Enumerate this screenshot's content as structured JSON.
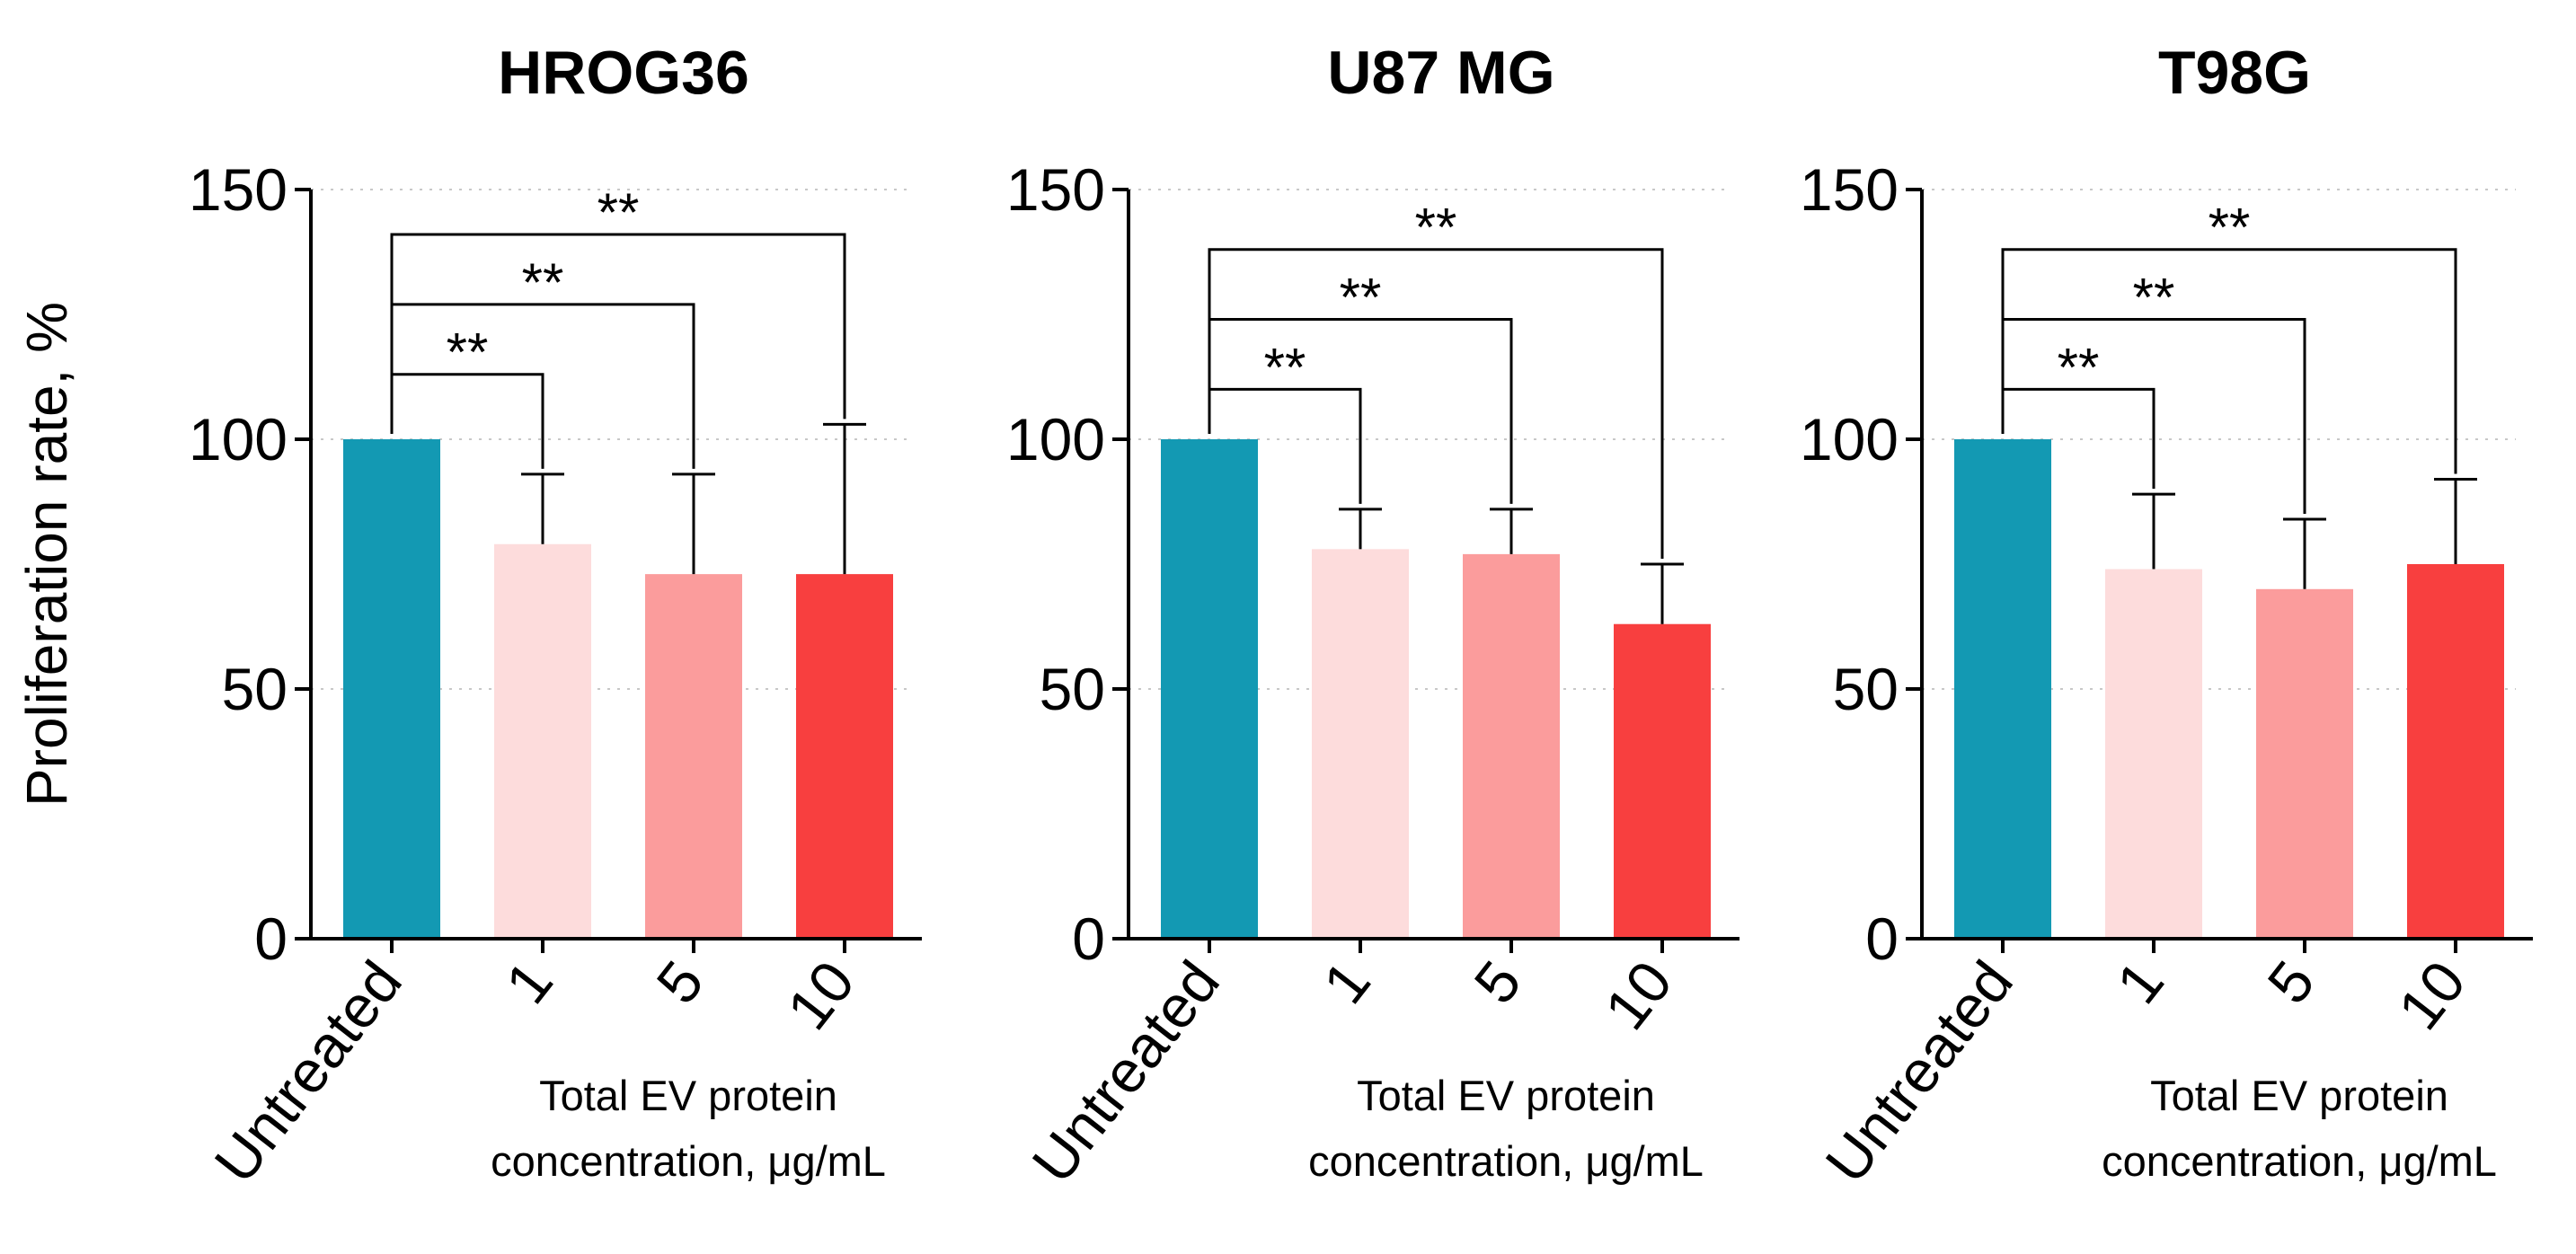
{
  "y_axis_label": "Proliferation rate, %",
  "colors": {
    "Untreated": "#1399b3",
    "1": "#fddcdc",
    "5": "#fb9c9c",
    "10": "#f83f3f"
  },
  "chart_data": [
    {
      "type": "bar",
      "title": "HROG36",
      "categories": [
        "Untreated",
        "1",
        "5",
        "10"
      ],
      "values": [
        100,
        79,
        73,
        73
      ],
      "errors": [
        0,
        14,
        20,
        30
      ],
      "xlabel": [
        "Total EV protein",
        "concentration, μg/mL"
      ],
      "ylabel": "Proliferation rate, %",
      "ylim": [
        0,
        150
      ],
      "yticks": [
        "0",
        "50",
        "100",
        "150"
      ],
      "grid": true,
      "significance": [
        {
          "from": "Untreated",
          "to": "1",
          "label": "**",
          "level": 113
        },
        {
          "from": "Untreated",
          "to": "5",
          "label": "**",
          "level": 127
        },
        {
          "from": "Untreated",
          "to": "10",
          "label": "**",
          "level": 141
        }
      ]
    },
    {
      "type": "bar",
      "title": "U87 MG",
      "categories": [
        "Untreated",
        "1",
        "5",
        "10"
      ],
      "values": [
        100,
        78,
        77,
        63
      ],
      "errors": [
        0,
        8,
        9,
        12
      ],
      "xlabel": [
        "Total EV protein",
        "concentration, μg/mL"
      ],
      "ylabel": "",
      "ylim": [
        0,
        150
      ],
      "yticks": [
        "0",
        "50",
        "100",
        "150"
      ],
      "grid": true,
      "significance": [
        {
          "from": "Untreated",
          "to": "1",
          "label": "**",
          "level": 110
        },
        {
          "from": "Untreated",
          "to": "5",
          "label": "**",
          "level": 124
        },
        {
          "from": "Untreated",
          "to": "10",
          "label": "**",
          "level": 138
        }
      ]
    },
    {
      "type": "bar",
      "title": "T98G",
      "categories": [
        "Untreated",
        "1",
        "5",
        "10"
      ],
      "values": [
        100,
        74,
        70,
        75
      ],
      "errors": [
        0,
        15,
        14,
        17
      ],
      "xlabel": [
        "Total EV protein",
        "concentration, μg/mL"
      ],
      "ylabel": "",
      "ylim": [
        0,
        150
      ],
      "yticks": [
        "0",
        "50",
        "100",
        "150"
      ],
      "grid": true,
      "significance": [
        {
          "from": "Untreated",
          "to": "1",
          "label": "**",
          "level": 110
        },
        {
          "from": "Untreated",
          "to": "5",
          "label": "**",
          "level": 124
        },
        {
          "from": "Untreated",
          "to": "10",
          "label": "**",
          "level": 138
        }
      ]
    }
  ]
}
